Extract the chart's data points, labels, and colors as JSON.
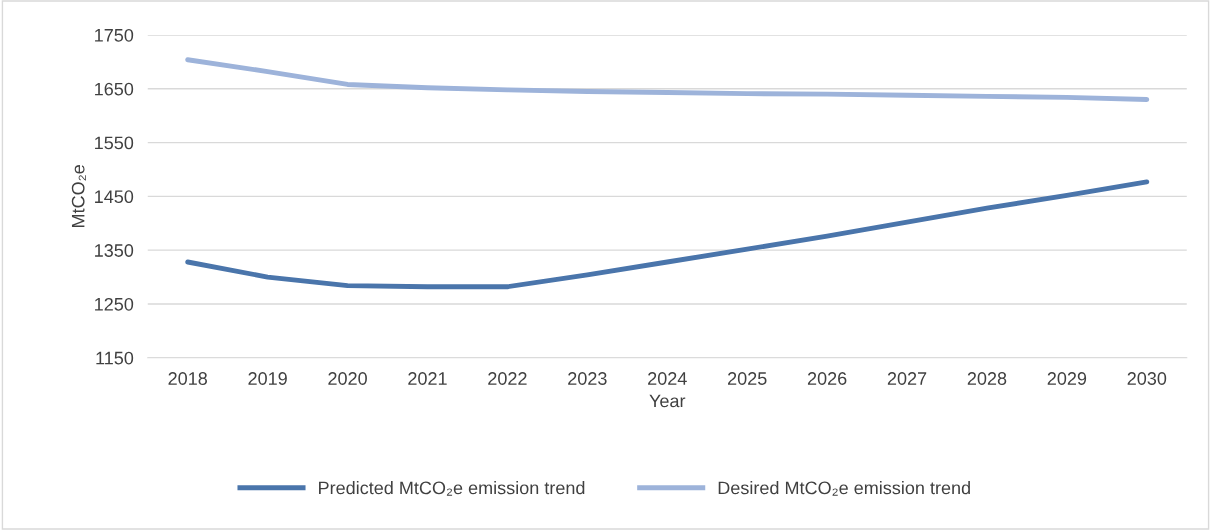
{
  "chart_data": {
    "type": "line",
    "xlabel": "Year",
    "ylabel": "MtCO₂e",
    "categories": [
      "2018",
      "2019",
      "2020",
      "2021",
      "2022",
      "2023",
      "2024",
      "2025",
      "2026",
      "2027",
      "2028",
      "2029",
      "2030"
    ],
    "series": [
      {
        "name": "Predicted MtCO₂e emission trend",
        "color": "#4a75ab",
        "values": [
          1328,
          1300,
          1284,
          1282,
          1282,
          1304,
          1328,
          1352,
          1376,
          1402,
          1428,
          1452,
          1477
        ]
      },
      {
        "name": "Desired MtCO₂e emission trend",
        "color": "#9db3da",
        "values": [
          1704,
          1682,
          1658,
          1652,
          1648,
          1645,
          1643,
          1641,
          1640,
          1638,
          1636,
          1634,
          1630
        ]
      }
    ],
    "ylim": [
      1150,
      1750
    ],
    "yticks": [
      1150,
      1250,
      1350,
      1450,
      1550,
      1650,
      1750
    ],
    "grid": "y",
    "legend": "bottom",
    "marker": "none",
    "line_style": "solid"
  }
}
